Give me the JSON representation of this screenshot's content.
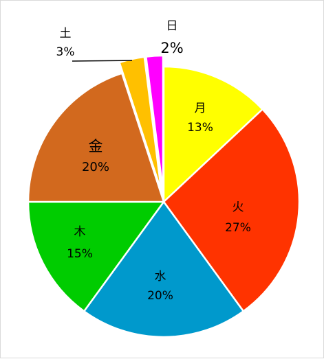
{
  "chart_data": {
    "type": "pie",
    "categories": [
      "月",
      "火",
      "水",
      "木",
      "金",
      "土",
      "日"
    ],
    "values": [
      13,
      27,
      20,
      15,
      20,
      3,
      2
    ],
    "labels": [
      {
        "name": "月",
        "percent": "13%"
      },
      {
        "name": "火",
        "percent": "27%"
      },
      {
        "name": "水",
        "percent": "20%"
      },
      {
        "name": "木",
        "percent": "15%"
      },
      {
        "name": "金",
        "percent": "20%"
      },
      {
        "name": "土",
        "percent": "3%"
      },
      {
        "name": "日",
        "percent": "2%"
      }
    ],
    "colors": [
      "#ffff00",
      "#ff3300",
      "#0099cc",
      "#00cc00",
      "#d2691e",
      "#ffc000",
      "#ff00ff"
    ],
    "exploded": [
      "土",
      "日"
    ],
    "legend": "none",
    "start_angle": "12 o'clock",
    "direction": "clockwise"
  }
}
